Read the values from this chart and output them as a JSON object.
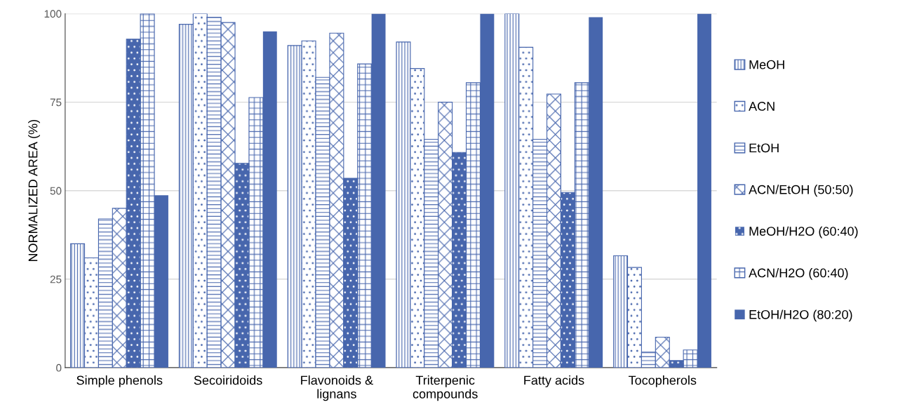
{
  "chart_data": {
    "type": "bar",
    "ylabel": "NORMALIZED AREA (%)",
    "categories": [
      "Simple phenols",
      "Secoiridoids",
      "Flavonoids &\nlignans",
      "Triterpenic\ncompounds",
      "Fatty acids",
      "Tocopherols"
    ],
    "series": [
      {
        "name": "MeOH",
        "color": "#4766ad",
        "values": [
          35,
          97,
          91,
          92,
          100,
          31.6
        ]
      },
      {
        "name": "ACN",
        "color": "#4766ad",
        "values": [
          31,
          100,
          92.3,
          84.5,
          90.5,
          28.3
        ]
      },
      {
        "name": "EtOH",
        "color": "#4766ad",
        "values": [
          42,
          99,
          82,
          64.5,
          64.5,
          4.4
        ]
      },
      {
        "name": "ACN/EtOH (50:50)",
        "color": "#4766ad",
        "values": [
          45,
          97.5,
          94.5,
          75,
          77.3,
          8.6
        ]
      },
      {
        "name": "MeOH/H2O (60:40)",
        "color": "#4766ad",
        "values": [
          92.8,
          57.7,
          53.5,
          60.8,
          49.5,
          2
        ]
      },
      {
        "name": "ACN/H2O (60:40)",
        "color": "#4766ad",
        "values": [
          100,
          76.3,
          85.8,
          80.5,
          80.5,
          5
        ]
      },
      {
        "name": "EtOH/H2O (80:20)",
        "color": "#4766ad",
        "values": [
          48.7,
          95,
          100,
          100,
          99,
          100
        ]
      }
    ],
    "ylim": [
      0,
      100
    ],
    "yticks": [
      0,
      25,
      50,
      75,
      100
    ],
    "grid": "y",
    "legend": "right"
  }
}
